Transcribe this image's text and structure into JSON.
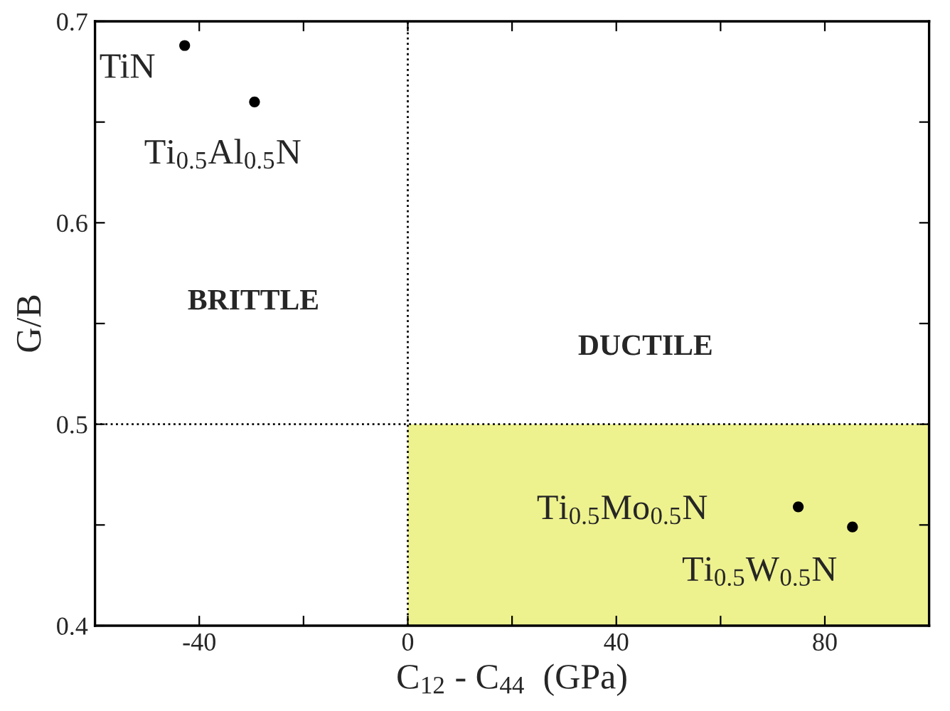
{
  "chart_data": {
    "type": "scatter",
    "xlabel": "C$_{12}$ - C$_{44}$  (GPa)",
    "ylabel": "G/B",
    "x": [
      -42.8,
      -29.4,
      74.9,
      85.3
    ],
    "series": [
      {
        "color": "#000000",
        "values": [
          0.688,
          0.66,
          0.459,
          0.449
        ]
      }
    ],
    "marker": "circle",
    "xlim": [
      -60,
      100
    ],
    "ylim": [
      0.4,
      0.7
    ],
    "xticks": [
      -40,
      {
        "value": -20,
        "label": null
      },
      0,
      {
        "value": 20,
        "label": null
      },
      40,
      {
        "value": 60,
        "label": null
      },
      80
    ],
    "yticks": [
      0.4,
      {
        "value": 0.45,
        "label": null
      },
      0.5,
      {
        "value": 0.55,
        "label": null
      },
      0.6,
      {
        "value": 0.65,
        "label": null
      },
      0.7
    ],
    "ref_lines": [
      {
        "axis": "x",
        "value": 0,
        "line_style": "dotted",
        "color": "#000000"
      },
      {
        "axis": "y",
        "value": 0.5,
        "line_style": "dotted",
        "color": "#000000"
      }
    ],
    "bands": [
      {
        "axis": "x",
        "from": 0,
        "to": 100,
        "color": "#eef28e"
      }
    ],
    "annotations": [
      {
        "text": "TiN",
        "x": -42.8,
        "y": 0.688
      },
      {
        "text": "Ti$_{0.5}$Al$_{0.5}$N",
        "x": -29.4,
        "y": 0.66
      },
      {
        "text": "Ti$_{0.5}$Mo$_{0.5}$N",
        "x": 74.9,
        "y": 0.459
      },
      {
        "text": "Ti$_{0.5}$W$_{0.5}$N",
        "x": 85.3,
        "y": 0.449
      },
      "BRITTLE",
      "DUCTILE"
    ],
    "grid": false,
    "legend": false
  }
}
